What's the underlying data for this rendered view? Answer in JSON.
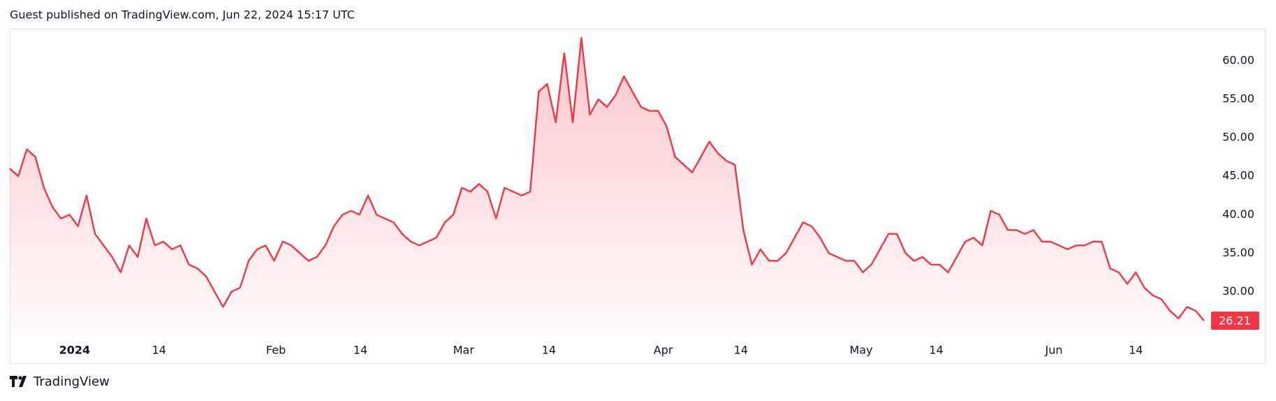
{
  "published": "Guest published on TradingView.com, Jun 22, 2024 15:17 UTC",
  "brand": "TradingView",
  "chart_data": {
    "type": "area",
    "color": "#f23645",
    "values": [
      46,
      45,
      48.5,
      47.5,
      43.5,
      41,
      39.5,
      40,
      38.5,
      42.5,
      37.5,
      36,
      34.5,
      32.5,
      36,
      34.5,
      39.5,
      36,
      36.5,
      35.5,
      36,
      33.5,
      33,
      32,
      30,
      28,
      30,
      30.5,
      34,
      35.5,
      36,
      34,
      36.5,
      36,
      35,
      34,
      34.5,
      36,
      38.5,
      40,
      40.5,
      40,
      42.5,
      40,
      39.5,
      39,
      37.5,
      36.5,
      36,
      36.5,
      37,
      39,
      40,
      43.5,
      43,
      44,
      43,
      39.5,
      43.5,
      43,
      42.5,
      43,
      56,
      57,
      52,
      61,
      52,
      63,
      53,
      55,
      54,
      55.5,
      58,
      56,
      54,
      53.5,
      53.5,
      51.5,
      47.5,
      46.5,
      45.5,
      47.5,
      49.5,
      48,
      47,
      46.5,
      38,
      33.5,
      35.5,
      34,
      34,
      35,
      37,
      39,
      38.5,
      37,
      35,
      34.5,
      34,
      34,
      32.5,
      33.5,
      35.5,
      37.5,
      37.5,
      35,
      34,
      34.5,
      33.5,
      33.5,
      32.5,
      34.5,
      36.5,
      37,
      36,
      40.5,
      40,
      38,
      38,
      37.5,
      38,
      36.5,
      36.5,
      36,
      35.5,
      36,
      36,
      36.5,
      36.5,
      33,
      32.5,
      31,
      32.5,
      30.5,
      29.5,
      29,
      27.5,
      26.5,
      28,
      27.5,
      26.21
    ],
    "xlim": [
      0,
      140
    ],
    "xticks": [
      {
        "value": 7.6,
        "label": "2024"
      },
      {
        "value": 17.5,
        "label": "14"
      },
      {
        "value": 31.2,
        "label": "Feb"
      },
      {
        "value": 41.1,
        "label": "14"
      },
      {
        "value": 53.2,
        "label": "Mar"
      },
      {
        "value": 63.2,
        "label": "14"
      },
      {
        "value": 76.6,
        "label": "Apr"
      },
      {
        "value": 85.7,
        "label": "14"
      },
      {
        "value": 99.8,
        "label": "May"
      },
      {
        "value": 108.6,
        "label": "14"
      },
      {
        "value": 122.4,
        "label": "Jun"
      },
      {
        "value": 132,
        "label": "14"
      }
    ],
    "ylim": [
      24.3,
      64.2
    ],
    "yticks": [
      {
        "value": 30,
        "label": "30.00"
      },
      {
        "value": 35,
        "label": "35.00"
      },
      {
        "value": 40,
        "label": "40.00"
      },
      {
        "value": 45,
        "label": "45.00"
      },
      {
        "value": 50,
        "label": "50.00"
      },
      {
        "value": 55,
        "label": "55.00"
      },
      {
        "value": 60,
        "label": "60.00"
      }
    ]
  }
}
